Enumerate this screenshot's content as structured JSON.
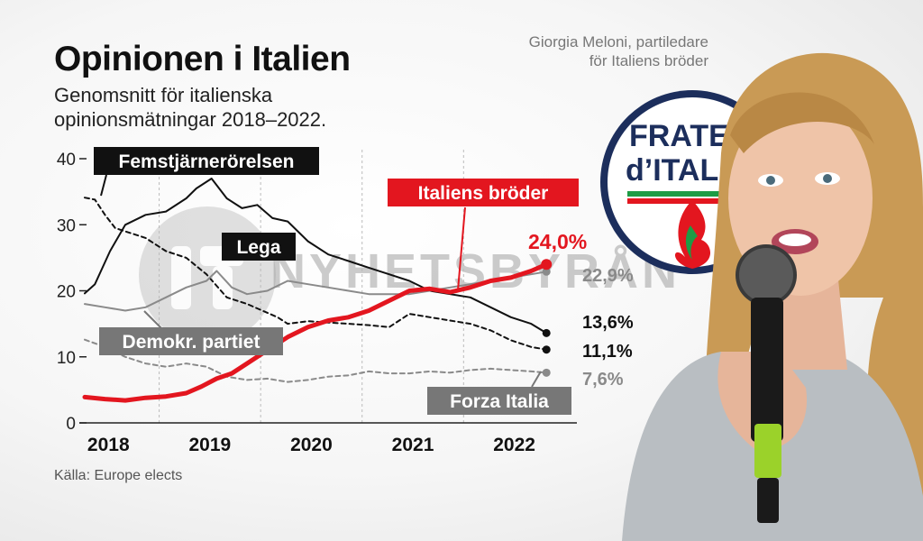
{
  "header": {
    "title": "Opinionen i Italien",
    "subtitle": "Genomsnitt för italienska opinionsmätningar 2018–2022.",
    "caption_line1": "Giorgia Meloni, partiledare",
    "caption_line2": "för Italiens bröder"
  },
  "footer": {
    "source": "Källa: Europe elects"
  },
  "watermark": {
    "text": "NYHETSBYRÅN"
  },
  "logo": {
    "line1": "FRATE",
    "line2": "d’ITAL"
  },
  "colors": {
    "red": "#e3161f",
    "black": "#111111",
    "grey_dark": "#555555",
    "grey": "#8a8a8a",
    "grey_light": "#9a9a9a"
  },
  "chart_data": {
    "type": "line",
    "ylim": [
      0,
      40
    ],
    "yticks": [
      0,
      10,
      20,
      30,
      40
    ],
    "ytick_labels": [
      "0",
      "10",
      "20",
      "30",
      "40"
    ],
    "xlim": [
      2018.0,
      2022.85
    ],
    "xticks": [
      2018,
      2019,
      2020,
      2021,
      2022
    ],
    "xtick_labels": [
      "2018",
      "2019",
      "2020",
      "2021",
      "2022"
    ],
    "grid": "vertical dashed lines at year boundaries",
    "series": [
      {
        "name": "Femstjärnerörelsen",
        "style": "dashed",
        "color": "#111111",
        "end_label": "11,1%",
        "points": [
          [
            2018.0,
            34.1
          ],
          [
            2018.1,
            33.8
          ],
          [
            2018.2,
            31.5
          ],
          [
            2018.3,
            29.5
          ],
          [
            2018.4,
            29.0
          ],
          [
            2018.6,
            28.0
          ],
          [
            2018.8,
            26.0
          ],
          [
            2019.0,
            25.0
          ],
          [
            2019.2,
            22.5
          ],
          [
            2019.4,
            19.0
          ],
          [
            2019.6,
            18.0
          ],
          [
            2019.75,
            17.0
          ],
          [
            2019.9,
            16.0
          ],
          [
            2020.0,
            15.0
          ],
          [
            2020.2,
            15.4
          ],
          [
            2020.4,
            15.2
          ],
          [
            2020.6,
            15.0
          ],
          [
            2020.8,
            14.8
          ],
          [
            2021.0,
            14.5
          ],
          [
            2021.2,
            16.5
          ],
          [
            2021.4,
            16.0
          ],
          [
            2021.6,
            15.5
          ],
          [
            2021.8,
            15.0
          ],
          [
            2022.0,
            14.0
          ],
          [
            2022.2,
            12.5
          ],
          [
            2022.4,
            11.5
          ],
          [
            2022.55,
            11.1
          ]
        ]
      },
      {
        "name": "Lega",
        "style": "solid",
        "color": "#111111",
        "end_label": "13,6%",
        "points": [
          [
            2018.0,
            19.6
          ],
          [
            2018.1,
            21.0
          ],
          [
            2018.25,
            26.0
          ],
          [
            2018.4,
            30.0
          ],
          [
            2018.6,
            31.5
          ],
          [
            2018.8,
            32.0
          ],
          [
            2019.0,
            34.0
          ],
          [
            2019.1,
            35.5
          ],
          [
            2019.25,
            37.0
          ],
          [
            2019.4,
            34.0
          ],
          [
            2019.55,
            32.5
          ],
          [
            2019.7,
            33.0
          ],
          [
            2019.85,
            31.0
          ],
          [
            2020.0,
            30.5
          ],
          [
            2020.2,
            27.5
          ],
          [
            2020.4,
            25.5
          ],
          [
            2020.6,
            24.5
          ],
          [
            2020.8,
            23.5
          ],
          [
            2021.0,
            22.5
          ],
          [
            2021.2,
            21.5
          ],
          [
            2021.4,
            20.0
          ],
          [
            2021.6,
            19.5
          ],
          [
            2021.8,
            19.0
          ],
          [
            2022.0,
            17.5
          ],
          [
            2022.2,
            16.0
          ],
          [
            2022.4,
            15.0
          ],
          [
            2022.55,
            13.6
          ]
        ]
      },
      {
        "name": "Demokr. partiet",
        "style": "solid",
        "color": "#8a8a8a",
        "end_label": "22,9%",
        "points": [
          [
            2018.0,
            18.0
          ],
          [
            2018.2,
            17.5
          ],
          [
            2018.4,
            17.0
          ],
          [
            2018.6,
            17.5
          ],
          [
            2018.8,
            19.0
          ],
          [
            2019.0,
            20.5
          ],
          [
            2019.2,
            21.5
          ],
          [
            2019.3,
            23.0
          ],
          [
            2019.45,
            20.5
          ],
          [
            2019.6,
            19.5
          ],
          [
            2019.8,
            20.0
          ],
          [
            2020.0,
            21.5
          ],
          [
            2020.2,
            21.0
          ],
          [
            2020.4,
            20.5
          ],
          [
            2020.6,
            20.0
          ],
          [
            2020.8,
            19.5
          ],
          [
            2021.0,
            19.5
          ],
          [
            2021.2,
            19.5
          ],
          [
            2021.4,
            20.0
          ],
          [
            2021.6,
            20.5
          ],
          [
            2021.8,
            21.0
          ],
          [
            2022.0,
            21.5
          ],
          [
            2022.2,
            22.0
          ],
          [
            2022.4,
            22.5
          ],
          [
            2022.55,
            22.9
          ]
        ]
      },
      {
        "name": "Forza Italia",
        "style": "dashed",
        "color": "#8a8a8a",
        "end_label": "7,6%",
        "points": [
          [
            2018.0,
            12.6
          ],
          [
            2018.2,
            11.5
          ],
          [
            2018.4,
            10.0
          ],
          [
            2018.6,
            9.0
          ],
          [
            2018.8,
            8.5
          ],
          [
            2019.0,
            9.0
          ],
          [
            2019.2,
            8.5
          ],
          [
            2019.4,
            7.0
          ],
          [
            2019.6,
            6.5
          ],
          [
            2019.8,
            6.7
          ],
          [
            2020.0,
            6.2
          ],
          [
            2020.2,
            6.5
          ],
          [
            2020.4,
            7.0
          ],
          [
            2020.6,
            7.2
          ],
          [
            2020.8,
            7.8
          ],
          [
            2021.0,
            7.5
          ],
          [
            2021.2,
            7.5
          ],
          [
            2021.4,
            7.8
          ],
          [
            2021.6,
            7.6
          ],
          [
            2021.8,
            8.0
          ],
          [
            2022.0,
            8.2
          ],
          [
            2022.2,
            8.0
          ],
          [
            2022.4,
            7.8
          ],
          [
            2022.55,
            7.6
          ]
        ]
      },
      {
        "name": "Italiens bröder",
        "style": "solid",
        "color": "#e3161f",
        "end_label": "24,0%",
        "points": [
          [
            2018.0,
            3.9
          ],
          [
            2018.2,
            3.6
          ],
          [
            2018.4,
            3.4
          ],
          [
            2018.6,
            3.8
          ],
          [
            2018.8,
            4.0
          ],
          [
            2019.0,
            4.5
          ],
          [
            2019.15,
            5.5
          ],
          [
            2019.3,
            6.7
          ],
          [
            2019.45,
            7.5
          ],
          [
            2019.6,
            9.0
          ],
          [
            2019.8,
            11.0
          ],
          [
            2020.0,
            13.0
          ],
          [
            2020.2,
            14.5
          ],
          [
            2020.4,
            15.5
          ],
          [
            2020.6,
            16.0
          ],
          [
            2020.8,
            17.0
          ],
          [
            2021.0,
            18.5
          ],
          [
            2021.2,
            20.0
          ],
          [
            2021.4,
            20.3
          ],
          [
            2021.6,
            19.8
          ],
          [
            2021.8,
            20.5
          ],
          [
            2022.0,
            21.5
          ],
          [
            2022.2,
            22.0
          ],
          [
            2022.4,
            23.0
          ],
          [
            2022.55,
            24.0
          ]
        ]
      }
    ]
  }
}
